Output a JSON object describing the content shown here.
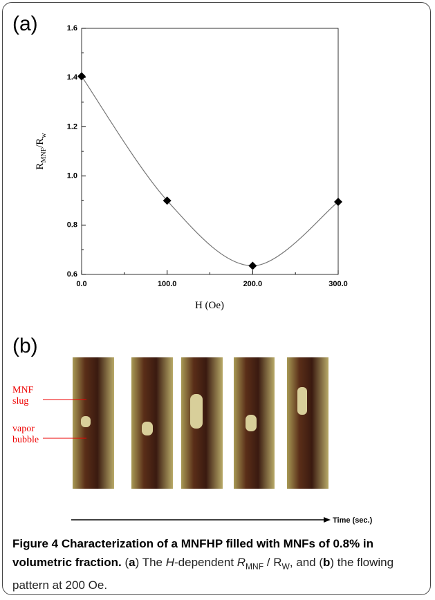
{
  "chart_data": {
    "type": "line",
    "panel_label": "(a)",
    "xlabel": "H (Oe)",
    "ylabel_parts": [
      "R",
      "MNF",
      "/R",
      "w"
    ],
    "x": [
      0,
      100,
      200,
      300
    ],
    "series": [
      {
        "values": [
          1.405,
          0.9,
          0.635,
          0.895
        ],
        "color": "#000000"
      }
    ],
    "xlim": [
      0,
      300
    ],
    "ylim": [
      0.6,
      1.6
    ],
    "xticks": [
      {
        "value": 0,
        "label": "0.0"
      },
      {
        "value": 100,
        "label": "100.0"
      },
      {
        "value": 200,
        "label": "200.0"
      },
      {
        "value": 300,
        "label": "300.0"
      }
    ],
    "yticks": [
      0.6,
      0.8,
      {
        "value": 1,
        "label": "1.0"
      },
      1.2,
      1.4,
      1.6
    ]
  },
  "panel_b": {
    "label": "(b)",
    "annotations": [
      "MNF slug",
      "vapor bubble"
    ],
    "time_axis": "Time (sec.)"
  },
  "caption": {
    "title": "Figure 4 Characterization of a MNFHP filled with MNFs of 0.8% in volumetric fraction.",
    "body": [
      "(",
      "a",
      ") The ",
      "H",
      "-dependent ",
      "R",
      "MNF",
      " / R",
      "W",
      ", and (",
      "b",
      ") the flowing pattern at 200 Oe."
    ]
  }
}
